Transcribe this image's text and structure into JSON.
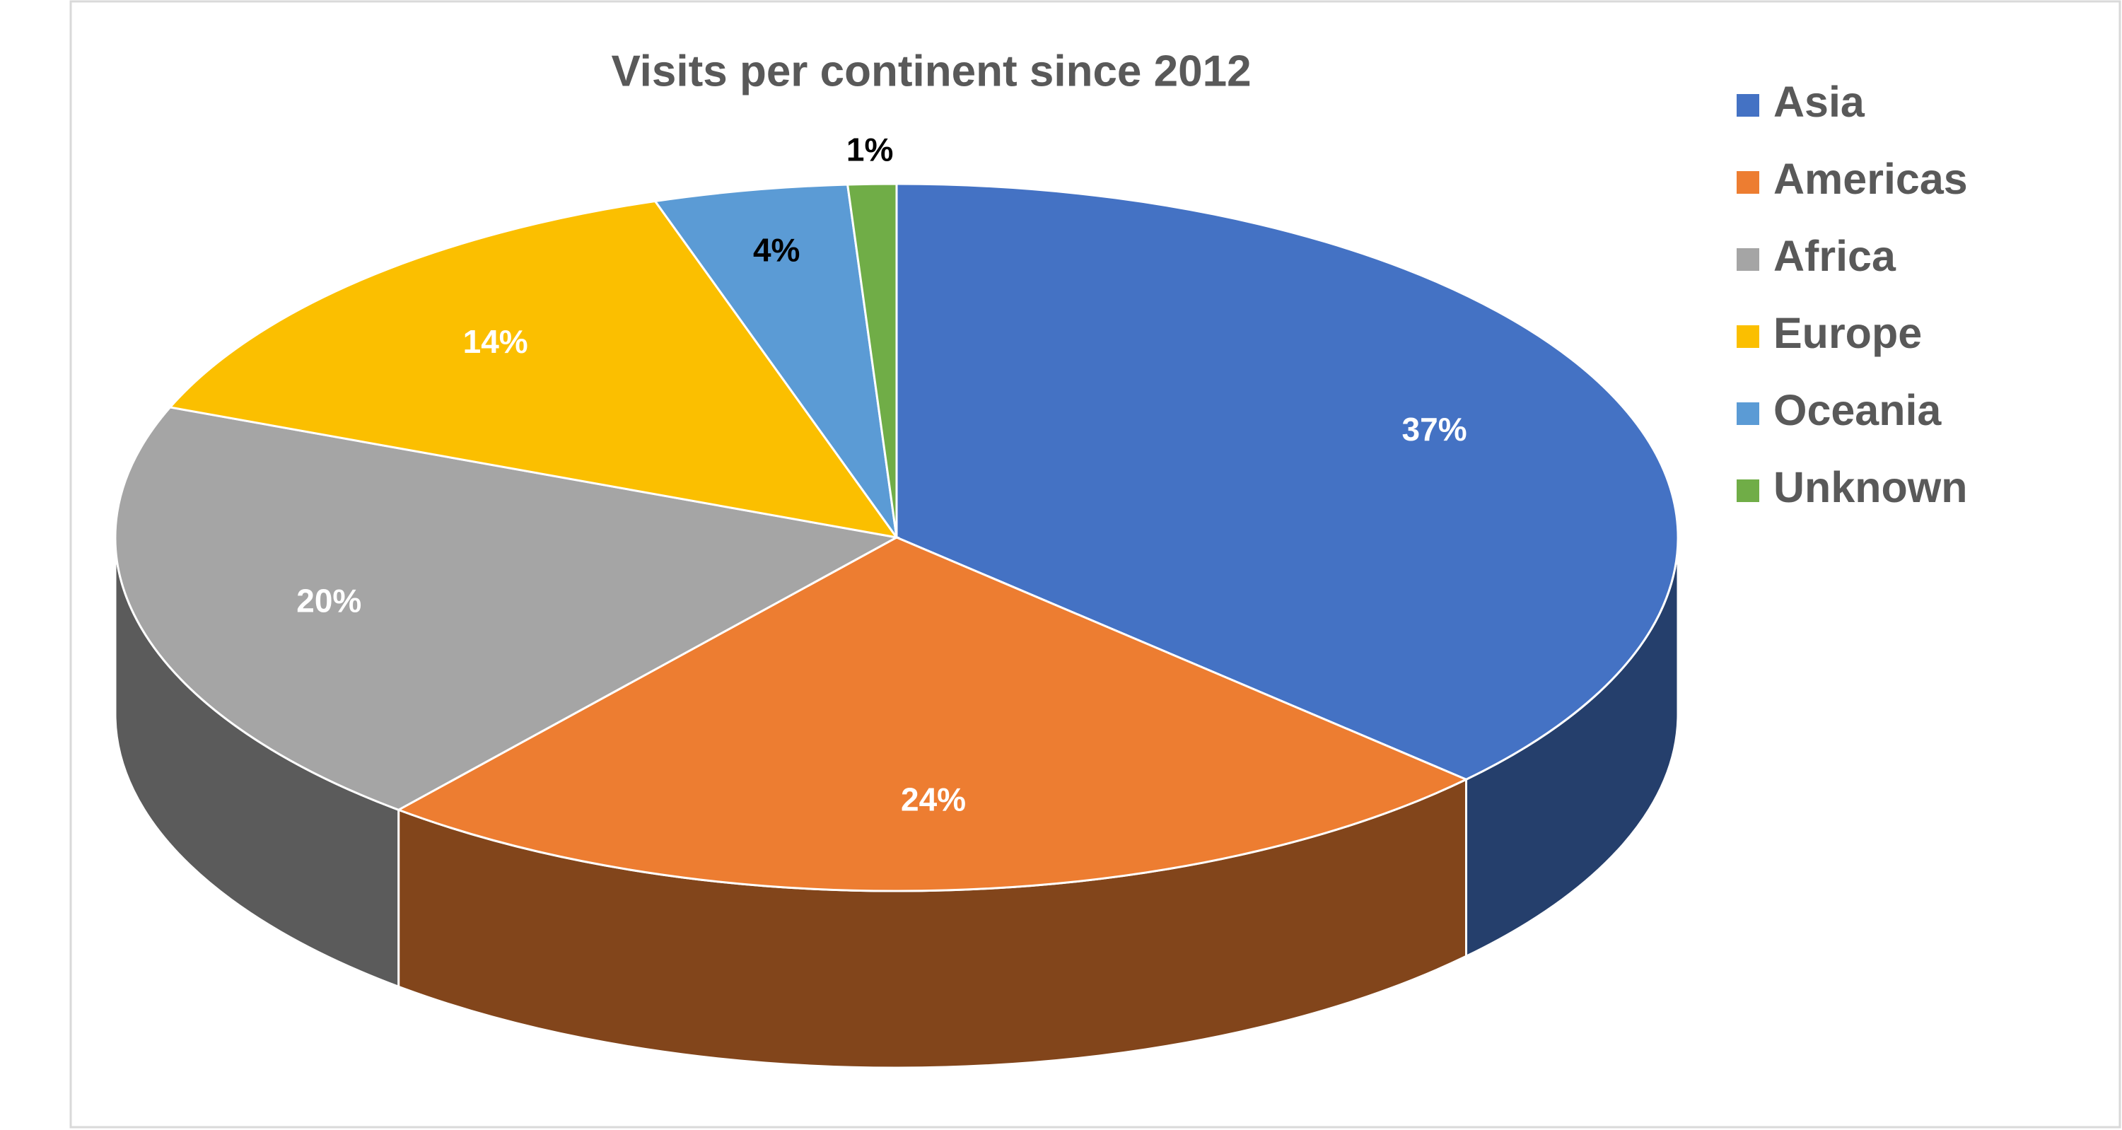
{
  "chart_data": {
    "type": "pie",
    "title": "Visits per continent since 2012",
    "categories": [
      "Asia",
      "Americas",
      "Africa",
      "Europe",
      "Oceania",
      "Unknown"
    ],
    "values": [
      37,
      24,
      20,
      14,
      4,
      1
    ],
    "value_labels": [
      "37%",
      "24%",
      "20%",
      "14%",
      "4%",
      "1%"
    ],
    "colors": [
      "#4472c4",
      "#ed7d31",
      "#a5a5a5",
      "#fbbf00",
      "#5b9bd5",
      "#70ad47"
    ],
    "legend": "right"
  }
}
